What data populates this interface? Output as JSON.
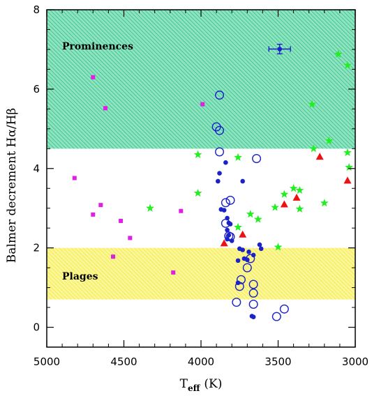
{
  "chart_data": {
    "type": "scatter",
    "xlabel": "T",
    "xlabel_sub": "eff",
    "xlabel_unit": "(K)",
    "ylabel": "Balmer decrement Hα/Hβ",
    "xlim": [
      5000,
      3000
    ],
    "ylim": [
      -0.5,
      8
    ],
    "x_reversed": true,
    "x_ticks": [
      5000,
      4500,
      4000,
      3500,
      3000
    ],
    "y_ticks": [
      0,
      2,
      4,
      6,
      8
    ],
    "grid": false,
    "regions": [
      {
        "label": "Prominences",
        "y_range": [
          4.5,
          8
        ],
        "color": "#2fc08a",
        "pattern": "diagonal-hatch"
      },
      {
        "label": "Plages",
        "y_range": [
          0.7,
          2.0
        ],
        "color": "#f2ea3a",
        "pattern": "diagonal-hatch"
      }
    ],
    "series": [
      {
        "marker": "square",
        "color": "#e020e0",
        "points": [
          [
            4700,
            6.3
          ],
          [
            4620,
            5.52
          ],
          [
            4820,
            3.76
          ],
          [
            4650,
            3.08
          ],
          [
            4700,
            2.84
          ],
          [
            4520,
            2.68
          ],
          [
            4460,
            2.25
          ],
          [
            4570,
            1.78
          ],
          [
            4180,
            1.38
          ],
          [
            4130,
            2.93
          ],
          [
            3990,
            5.62
          ]
        ]
      },
      {
        "marker": "star",
        "color": "#22ee22",
        "points": [
          [
            4330,
            3.0
          ],
          [
            4020,
            4.35
          ],
          [
            4020,
            3.38
          ],
          [
            3760,
            4.28
          ],
          [
            3760,
            2.52
          ],
          [
            3680,
            2.85
          ],
          [
            3630,
            2.72
          ],
          [
            3500,
            2.02
          ],
          [
            3520,
            3.02
          ],
          [
            3460,
            3.35
          ],
          [
            3400,
            3.5
          ],
          [
            3360,
            3.45
          ],
          [
            3360,
            2.98
          ],
          [
            3200,
            3.13
          ],
          [
            3280,
            5.62
          ],
          [
            3270,
            4.5
          ],
          [
            3170,
            4.7
          ],
          [
            3110,
            6.88
          ],
          [
            3050,
            6.6
          ],
          [
            3050,
            4.4
          ],
          [
            3040,
            4.03
          ]
        ]
      },
      {
        "marker": "triangle",
        "color": "#ee1111",
        "points": [
          [
            3850,
            2.12
          ],
          [
            3730,
            2.34
          ],
          [
            3460,
            3.1
          ],
          [
            3380,
            3.27
          ],
          [
            3230,
            4.3
          ],
          [
            3050,
            3.7
          ]
        ]
      },
      {
        "marker": "filled-circle",
        "color": "#1a22c8",
        "points": [
          [
            3840,
            4.15
          ],
          [
            3880,
            3.88
          ],
          [
            3890,
            3.68
          ],
          [
            3730,
            3.68
          ],
          [
            3870,
            2.97
          ],
          [
            3850,
            2.95
          ],
          [
            3830,
            2.75
          ],
          [
            3820,
            2.63
          ],
          [
            3810,
            2.6
          ],
          [
            3830,
            2.45
          ],
          [
            3820,
            2.32
          ],
          [
            3830,
            2.22
          ],
          [
            3800,
            2.18
          ],
          [
            3620,
            2.08
          ],
          [
            3610,
            1.98
          ],
          [
            3750,
            1.98
          ],
          [
            3730,
            1.95
          ],
          [
            3690,
            1.9
          ],
          [
            3660,
            1.82
          ],
          [
            3720,
            1.73
          ],
          [
            3760,
            1.68
          ],
          [
            3700,
            1.7
          ],
          [
            3760,
            1.12
          ],
          [
            3670,
            0.28
          ],
          [
            3660,
            0.26
          ]
        ]
      },
      {
        "marker": "open-circle",
        "color": "#1a22c8",
        "points": [
          [
            3880,
            5.85
          ],
          [
            3900,
            5.05
          ],
          [
            3880,
            4.96
          ],
          [
            3880,
            4.42
          ],
          [
            3640,
            4.25
          ],
          [
            3840,
            3.14
          ],
          [
            3810,
            3.2
          ],
          [
            3840,
            2.62
          ],
          [
            3820,
            2.3
          ],
          [
            3810,
            2.28
          ],
          [
            3680,
            1.73
          ],
          [
            3700,
            1.5
          ],
          [
            3740,
            1.2
          ],
          [
            3750,
            1.03
          ],
          [
            3660,
            1.08
          ],
          [
            3660,
            0.86
          ],
          [
            3770,
            0.63
          ],
          [
            3660,
            0.58
          ],
          [
            3460,
            0.46
          ],
          [
            3510,
            0.27
          ]
        ]
      },
      {
        "marker": "errorbar-point",
        "color": "#1a22c8",
        "points": [
          [
            3490,
            7.01
          ]
        ],
        "x_err": 70,
        "y_err": 0.12
      }
    ]
  }
}
